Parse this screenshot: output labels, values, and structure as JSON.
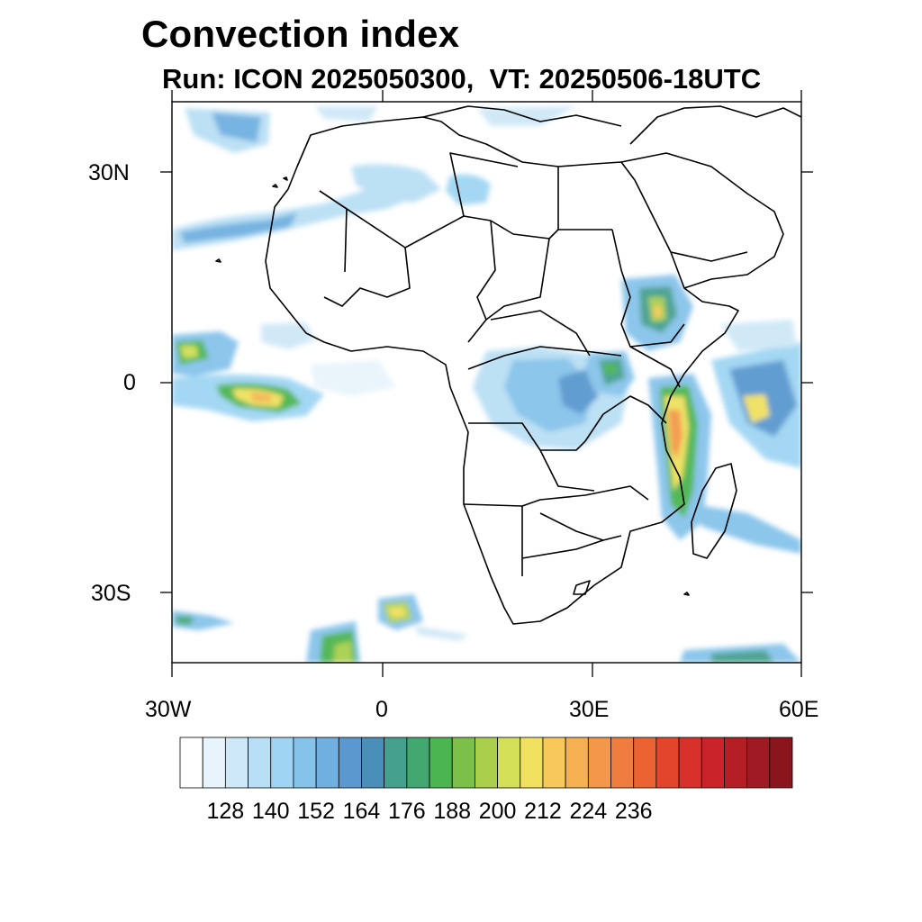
{
  "title": "Convection index",
  "subtitle": "Run: ICON 2025050300,  VT: 20250506-18UTC",
  "axes": {
    "lat_labels": [
      "30N",
      "0",
      "30S"
    ],
    "lon_labels": [
      "30W",
      "0",
      "30E",
      "60E"
    ]
  },
  "colorbar": {
    "labels": [
      "128",
      "140",
      "152",
      "164",
      "176",
      "188",
      "200",
      "212",
      "224",
      "236"
    ],
    "colors": [
      "#ffffff",
      "#e8f4fb",
      "#cfe8f7",
      "#b9dff4",
      "#9fd5f3",
      "#86c3ea",
      "#6fb0e0",
      "#5a98cf",
      "#4a8fb7",
      "#45a08e",
      "#43a870",
      "#4bb54f",
      "#7cc04a",
      "#a9cf4d",
      "#d2df57",
      "#f0e15e",
      "#f6c95a",
      "#f5b052",
      "#f3984a",
      "#ef7d3f",
      "#eb6233",
      "#e3452c",
      "#d8302b",
      "#c92429",
      "#b41f26",
      "#9f1a22",
      "#8a151d"
    ]
  }
}
